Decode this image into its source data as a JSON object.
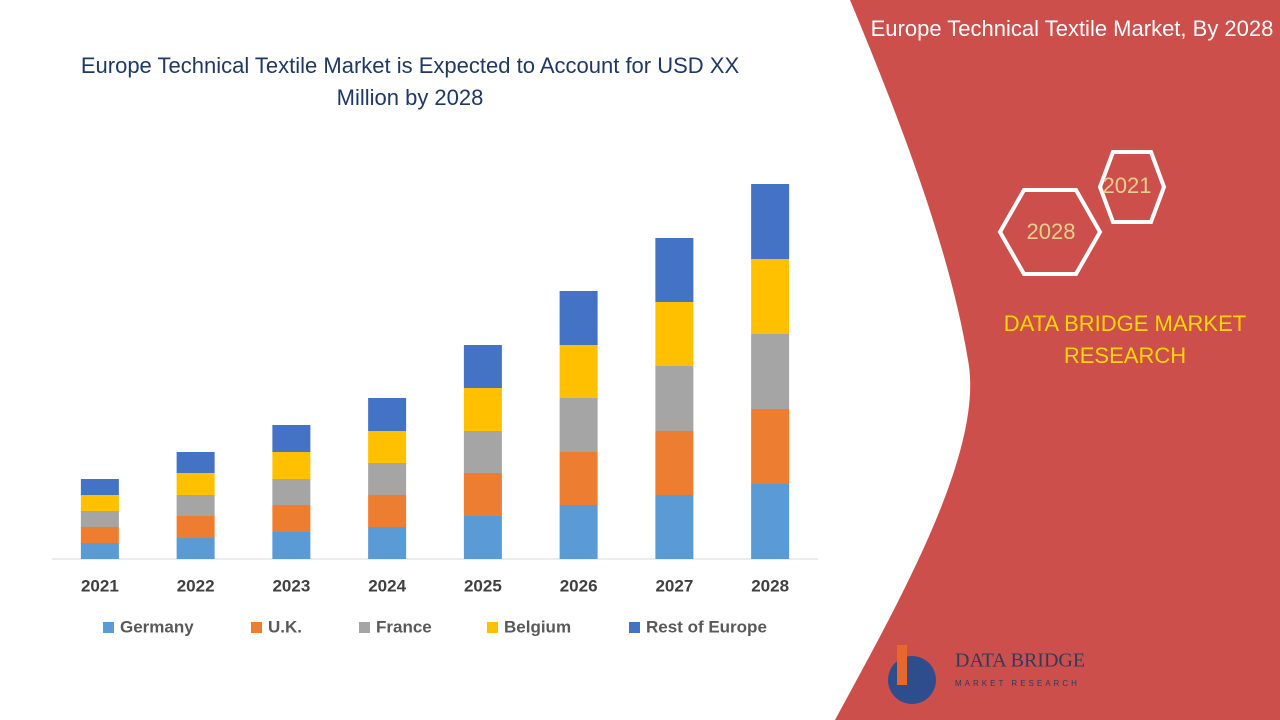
{
  "chart_data": {
    "type": "stacked-bar",
    "title": "Europe Technical Textile Market is Expected to Account for USD XX Million by 2028",
    "categories": [
      "2021",
      "2022",
      "2023",
      "2024",
      "2025",
      "2026",
      "2027",
      "2028"
    ],
    "series": [
      {
        "name": "Germany",
        "color": "#5b9bd5",
        "values": [
          16,
          21,
          27,
          32,
          43,
          54,
          64,
          75
        ]
      },
      {
        "name": "U.K.",
        "color": "#ed7d31",
        "values": [
          16,
          22,
          27,
          32,
          43,
          53,
          64,
          75
        ]
      },
      {
        "name": "France",
        "color": "#a5a5a5",
        "values": [
          16,
          21,
          26,
          32,
          42,
          54,
          65,
          75
        ]
      },
      {
        "name": "Belgium",
        "color": "#ffc000",
        "values": [
          16,
          22,
          27,
          32,
          43,
          53,
          64,
          75
        ]
      },
      {
        "name": "Rest of Europe",
        "color": "#4472c4",
        "values": [
          16,
          21,
          27,
          33,
          43,
          54,
          64,
          75
        ]
      }
    ],
    "legend": "bottom"
  },
  "panel": {
    "title": "Europe Technical Textile Market, By 2028",
    "hex_years": [
      "2021",
      "2028"
    ],
    "brand": "DATA BRIDGE MARKET RESEARCH",
    "logo_name": "DATA BRIDGE",
    "logo_tagline": "MARKET RESEARCH"
  }
}
